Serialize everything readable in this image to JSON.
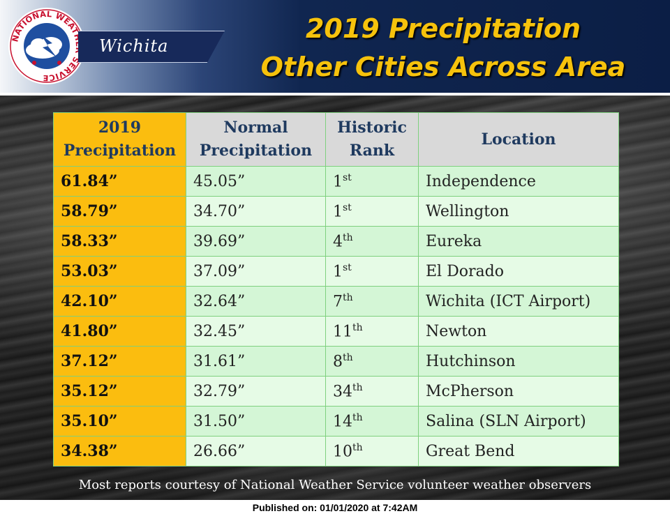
{
  "header": {
    "office": "Wichita",
    "logo_text": "NATIONAL WEATHER SERVICE",
    "title_line1": "2019 Precipitation",
    "title_line2": "Other Cities Across Area"
  },
  "colors": {
    "title": "#f6c20c",
    "highlight_column": "#fbbd0f",
    "row_green": "#d4f6d6",
    "header_gray": "#d9d9d9",
    "banner_navy": "#102650"
  },
  "table": {
    "columns": [
      {
        "line1": "2019",
        "line2": "Precipitation"
      },
      {
        "line1": "Normal",
        "line2": "Precipitation"
      },
      {
        "line1": "Historic",
        "line2": "Rank"
      },
      {
        "line1": "Location",
        "line2": ""
      }
    ],
    "rows": [
      {
        "precip": "61.84”",
        "normal": "45.05”",
        "rank": "1",
        "suffix": "st",
        "location": "Independence"
      },
      {
        "precip": "58.79”",
        "normal": "34.70”",
        "rank": "1",
        "suffix": "st",
        "location": "Wellington"
      },
      {
        "precip": "58.33”",
        "normal": "39.69”",
        "rank": "4",
        "suffix": "th",
        "location": "Eureka"
      },
      {
        "precip": "53.03”",
        "normal": "37.09”",
        "rank": "1",
        "suffix": "st",
        "location": "El Dorado"
      },
      {
        "precip": "42.10”",
        "normal": "32.64”",
        "rank": "7",
        "suffix": "th",
        "location": "Wichita (ICT Airport)"
      },
      {
        "precip": "41.80”",
        "normal": "32.45”",
        "rank": "11",
        "suffix": "th",
        "location": "Newton"
      },
      {
        "precip": "37.12”",
        "normal": "31.61”",
        "rank": "8",
        "suffix": "th",
        "location": "Hutchinson"
      },
      {
        "precip": "35.12”",
        "normal": "32.79”",
        "rank": "34",
        "suffix": "th",
        "location": "McPherson"
      },
      {
        "precip": "35.10”",
        "normal": "31.50”",
        "rank": "14",
        "suffix": "th",
        "location": "Salina (SLN Airport)"
      },
      {
        "precip": "34.38”",
        "normal": "26.66”",
        "rank": "10",
        "suffix": "th",
        "location": "Great Bend"
      }
    ]
  },
  "footer": {
    "note": "Most reports courtesy of  National Weather Service volunteer weather observers",
    "published": "Published on: 01/01/2020 at 7:42AM"
  }
}
